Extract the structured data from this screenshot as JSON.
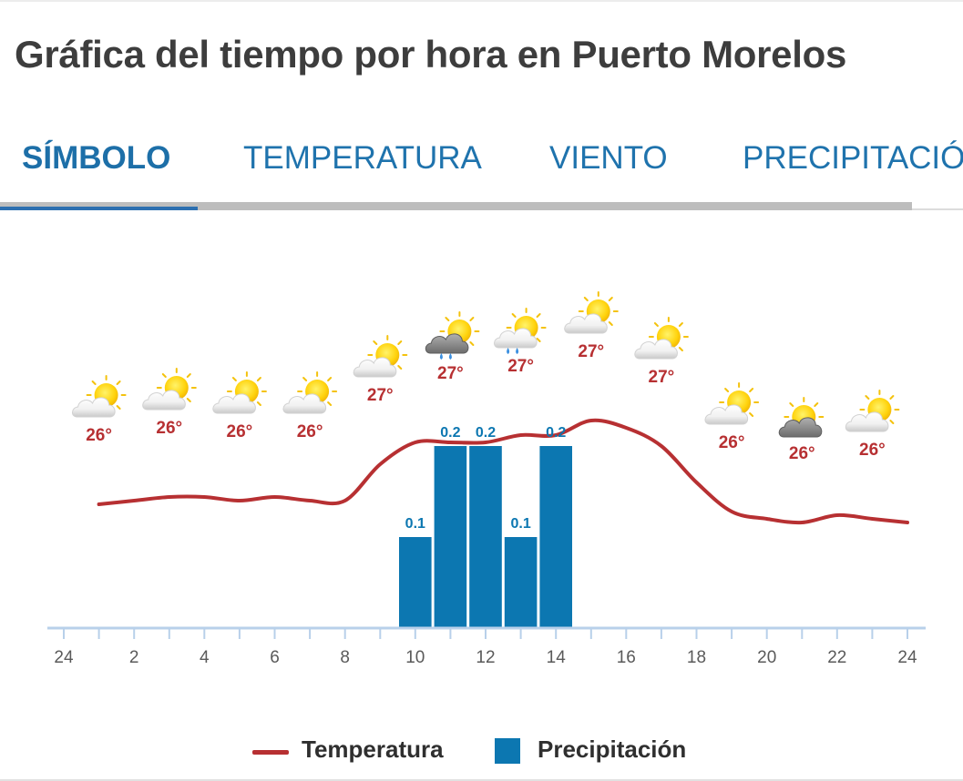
{
  "title": "Gráfica del tiempo por hora en Puerto Morelos",
  "tabs": [
    {
      "label": "SÍMBOLO",
      "active": true
    },
    {
      "label": "TEMPERATURA",
      "active": false
    },
    {
      "label": "VIENTO",
      "active": false
    },
    {
      "label": "PRECIPITACIÓN",
      "active": false
    }
  ],
  "legend": {
    "temperature": "Temperatura",
    "precipitation": "Precipitación"
  },
  "colors": {
    "temperature": "#b73032",
    "precipitation": "#0c77b1",
    "axis": "#b8d0ea",
    "tab": "#1f73ad"
  },
  "chart_data": {
    "type": "bar",
    "x_range": [
      0,
      24
    ],
    "x_tick_labels": [
      "24",
      "2",
      "4",
      "6",
      "8",
      "10",
      "12",
      "14",
      "16",
      "18",
      "20",
      "22",
      "24"
    ],
    "forecast": [
      {
        "hour": 1,
        "symbol": "partly-cloudy",
        "temp_label": "26°"
      },
      {
        "hour": 3,
        "symbol": "partly-cloudy",
        "temp_label": "26°"
      },
      {
        "hour": 5,
        "symbol": "partly-cloudy",
        "temp_label": "26°"
      },
      {
        "hour": 7,
        "symbol": "partly-cloudy",
        "temp_label": "26°"
      },
      {
        "hour": 9,
        "symbol": "partly-cloudy",
        "temp_label": "27°"
      },
      {
        "hour": 11,
        "symbol": "cloudy-rain",
        "temp_label": "27°"
      },
      {
        "hour": 13,
        "symbol": "sun-rain",
        "temp_label": "27°"
      },
      {
        "hour": 15,
        "symbol": "partly-cloudy",
        "temp_label": "27°"
      },
      {
        "hour": 17,
        "symbol": "partly-cloudy",
        "temp_label": "27°"
      },
      {
        "hour": 19,
        "symbol": "partly-cloudy",
        "temp_label": "26°"
      },
      {
        "hour": 21,
        "symbol": "cloudy",
        "temp_label": "26°"
      },
      {
        "hour": 23,
        "symbol": "partly-cloudy",
        "temp_label": "26°"
      }
    ],
    "temperature_series": {
      "name": "Temperatura",
      "hours": [
        1,
        2,
        3,
        4,
        5,
        6,
        7,
        8,
        9,
        10,
        11,
        12,
        13,
        14,
        15,
        16,
        17,
        18,
        19,
        20,
        21,
        22,
        23,
        24
      ],
      "values": [
        26.2,
        26.25,
        26.3,
        26.3,
        26.25,
        26.3,
        26.25,
        26.25,
        26.75,
        27.05,
        27.05,
        27.05,
        27.15,
        27.15,
        27.35,
        27.25,
        27.0,
        26.5,
        26.1,
        26.0,
        25.95,
        26.05,
        26.0,
        25.95
      ],
      "ylim": [
        24.5,
        29.5
      ]
    },
    "precipitation_series": {
      "name": "Precipitación",
      "bars": [
        {
          "hour": 10,
          "value": 0.1,
          "label": "0.1"
        },
        {
          "hour": 11,
          "value": 0.2,
          "label": "0.2"
        },
        {
          "hour": 12,
          "value": 0.2,
          "label": "0.2"
        },
        {
          "hour": 13,
          "value": 0.1,
          "label": "0.1"
        },
        {
          "hour": 14,
          "value": 0.2,
          "label": "0.2"
        }
      ],
      "ylim": [
        0,
        0.2
      ]
    }
  }
}
